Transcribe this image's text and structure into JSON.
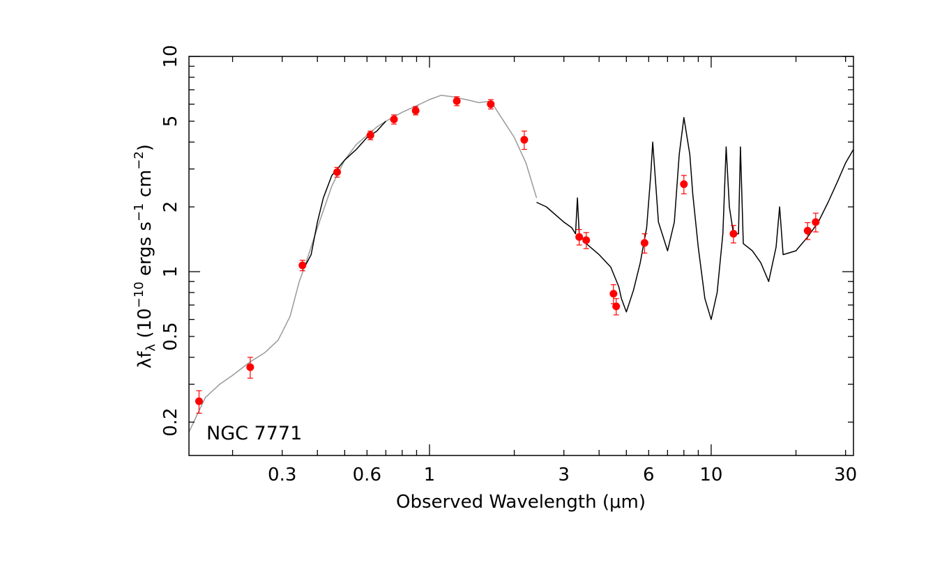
{
  "chart_data": {
    "type": "scatter",
    "title": "",
    "annotation": "NGC 7771",
    "xlabel": "Observed Wavelength (μm)",
    "ylabel": {
      "main": "λf",
      "sub": "λ",
      "units_prefix": " (10",
      "exp1": "−10",
      "units_mid": " ergs s",
      "exp2": "−1",
      "units_mid2": " cm",
      "exp3": "−2",
      "units_suffix": ")"
    },
    "x_scale": "log",
    "y_scale": "log",
    "xlim": [
      0.14,
      32
    ],
    "ylim": [
      0.14,
      10
    ],
    "x_ticks": [
      0.3,
      0.6,
      1,
      3,
      6,
      10,
      30
    ],
    "x_tick_labels": [
      "0.3",
      "0.6",
      "1",
      "3",
      "6",
      "10",
      "30"
    ],
    "y_ticks": [
      0.2,
      0.5,
      1,
      2,
      5,
      10
    ],
    "y_tick_labels": [
      "0.2",
      "0.5",
      "1",
      "2",
      "5",
      "10"
    ],
    "grid": false,
    "colors": {
      "photometry": "#ff0000",
      "model": "#999999",
      "observed": "#000000"
    },
    "series": [
      {
        "name": "",
        "style": "points-with-errorbars",
        "x": [
          0.152,
          0.231,
          0.354,
          0.47,
          0.617,
          0.748,
          0.893,
          1.25,
          1.65,
          2.17,
          3.4,
          3.6,
          4.5,
          4.6,
          5.8,
          8.0,
          12.0,
          22.0,
          23.5
        ],
        "y": [
          0.25,
          0.36,
          1.07,
          2.9,
          4.3,
          5.1,
          5.6,
          6.2,
          6.0,
          4.1,
          1.45,
          1.4,
          0.79,
          0.69,
          1.36,
          2.55,
          1.5,
          1.55,
          1.7
        ],
        "yerr": [
          0.03,
          0.04,
          0.06,
          0.15,
          0.2,
          0.25,
          0.25,
          0.3,
          0.3,
          0.4,
          0.12,
          0.12,
          0.08,
          0.06,
          0.14,
          0.25,
          0.14,
          0.14,
          0.17
        ]
      },
      {
        "name": "",
        "style": "model-line",
        "x": [
          0.14,
          0.16,
          0.18,
          0.2,
          0.23,
          0.26,
          0.29,
          0.32,
          0.345,
          0.36,
          0.4,
          0.45,
          0.5,
          0.55,
          0.6,
          0.65,
          0.7,
          0.8,
          0.9,
          1.0,
          1.1,
          1.2,
          1.35,
          1.5,
          1.65,
          1.8,
          2.0,
          2.2,
          2.4
        ],
        "y": [
          0.18,
          0.26,
          0.3,
          0.33,
          0.38,
          0.42,
          0.48,
          0.62,
          0.9,
          1.05,
          1.6,
          2.5,
          3.3,
          3.9,
          4.3,
          4.7,
          5.0,
          5.5,
          5.9,
          6.3,
          6.6,
          6.5,
          6.3,
          6.1,
          6.2,
          5.2,
          4.2,
          3.2,
          2.2
        ]
      },
      {
        "name": "",
        "style": "spectrum-line",
        "x": [
          0.36,
          0.38,
          0.4,
          0.42,
          0.45,
          0.5,
          0.55,
          0.6,
          0.65,
          0.68,
          0.7
        ],
        "y": [
          1.05,
          1.2,
          1.7,
          2.2,
          2.8,
          3.3,
          3.7,
          4.2,
          4.5,
          4.8,
          5.0
        ]
      },
      {
        "name": "",
        "style": "spectrum-line",
        "x": [
          2.4,
          2.6,
          3.0,
          3.2,
          3.3,
          3.35,
          3.4,
          3.6,
          4.0,
          4.4,
          4.7,
          4.8,
          5.0,
          5.3,
          5.6,
          5.9,
          6.1,
          6.2,
          6.5,
          7.0,
          7.4,
          7.7,
          8.0,
          8.4,
          8.6,
          9.0,
          9.5,
          10.0,
          10.5,
          11.0,
          11.3,
          11.6,
          12.0,
          12.5,
          12.7,
          13.0,
          14.0,
          15.0,
          16.0,
          17.0,
          17.5,
          18.0,
          20.0,
          22.0,
          24.0,
          26.0,
          28.0,
          30.0,
          32.0
        ],
        "y": [
          2.1,
          2.0,
          1.7,
          1.6,
          1.5,
          2.2,
          1.5,
          1.35,
          1.2,
          1.05,
          0.85,
          0.75,
          0.65,
          0.82,
          1.1,
          1.6,
          2.8,
          4.0,
          1.7,
          1.25,
          1.7,
          3.5,
          5.2,
          3.5,
          2.3,
          1.3,
          0.75,
          0.6,
          0.8,
          1.5,
          3.8,
          2.0,
          1.5,
          1.5,
          3.8,
          1.35,
          1.25,
          1.1,
          0.9,
          1.3,
          2.0,
          1.2,
          1.25,
          1.45,
          1.7,
          2.1,
          2.6,
          3.2,
          3.7
        ]
      }
    ]
  }
}
